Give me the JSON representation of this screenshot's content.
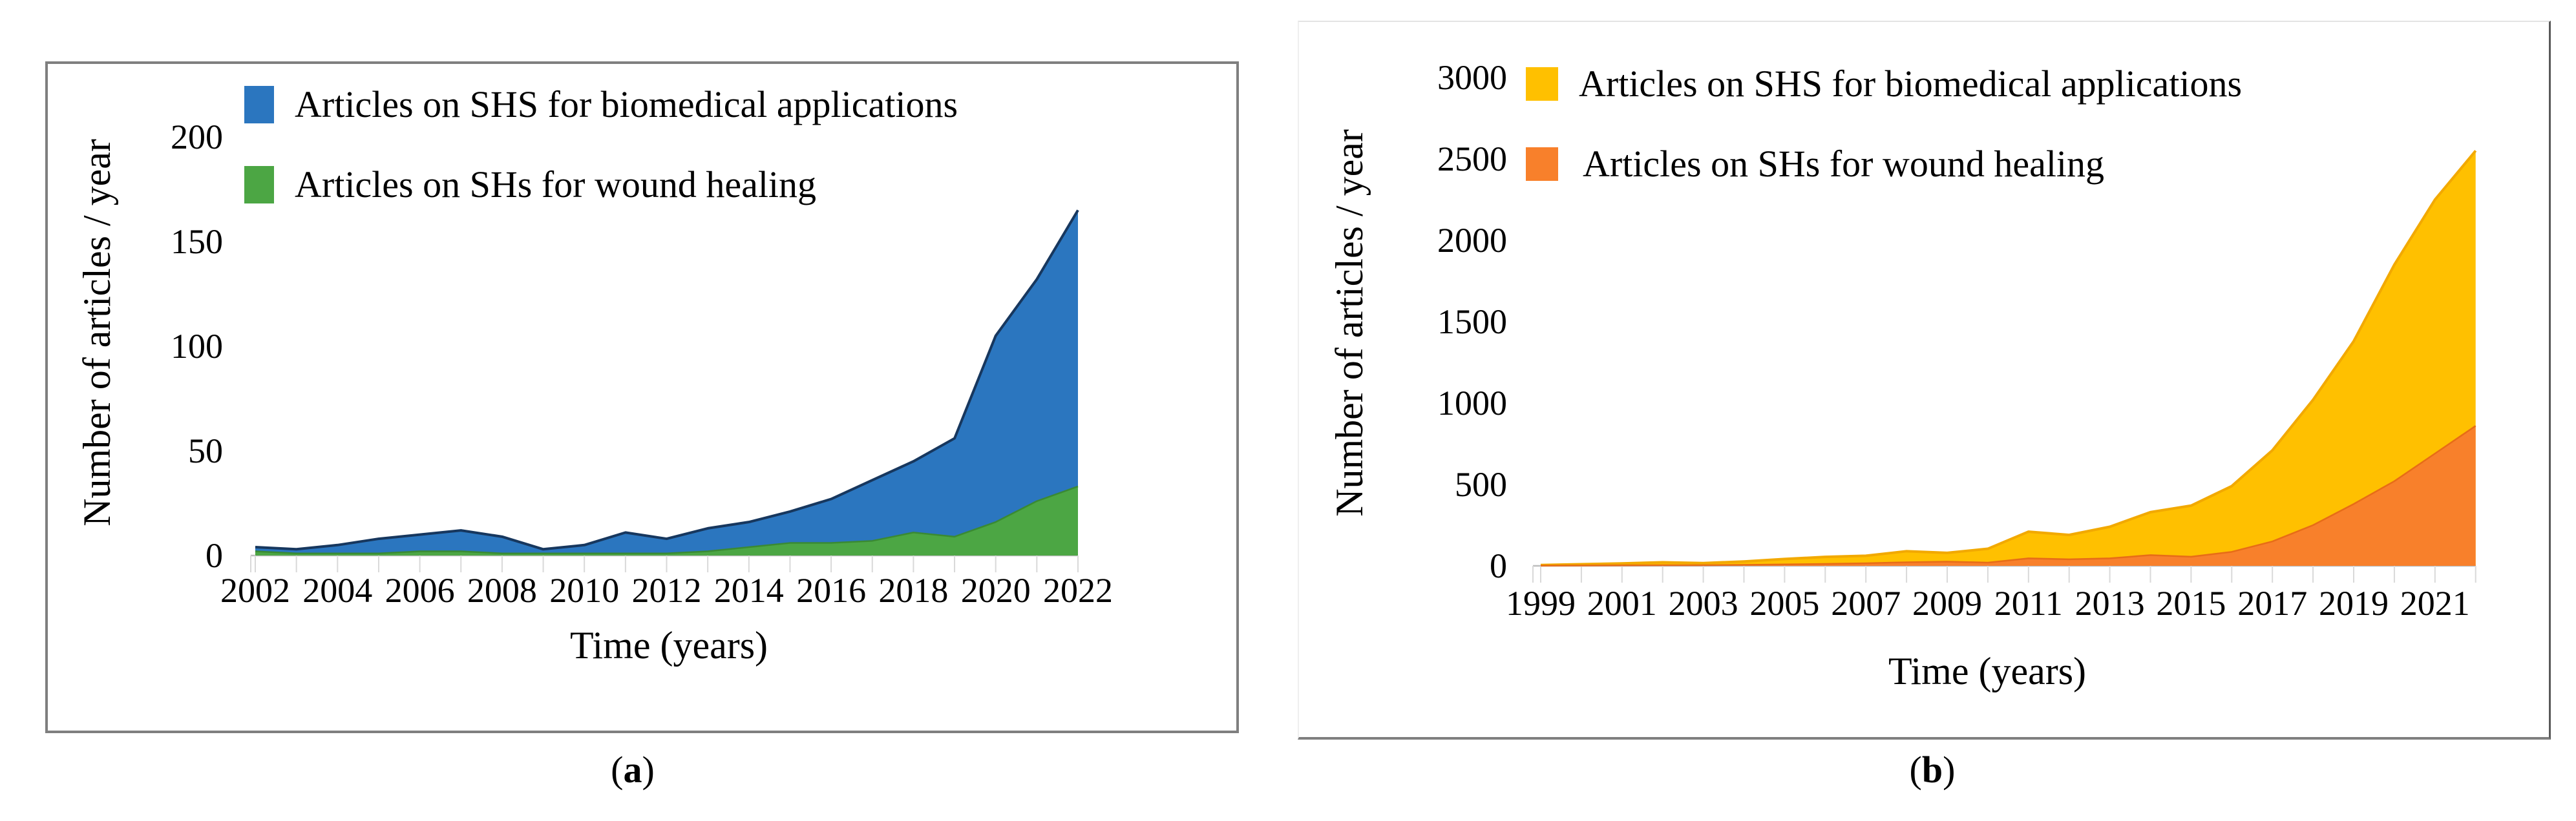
{
  "figure": {
    "panel_a": {
      "caption_open": "(",
      "caption_letter": "a",
      "caption_close": ")",
      "y_axis_title": "Number of articles / year",
      "x_axis_title": "Time (years)",
      "legend": [
        {
          "label": "Articles on SHS for biomedical applications",
          "color": "#2b76bf"
        },
        {
          "label": "Articles on SHs for wound healing",
          "color": "#4ca644"
        }
      ]
    },
    "panel_b": {
      "caption_open": "(",
      "caption_letter": "b",
      "caption_close": ")",
      "y_axis_title": "Number of articles / year",
      "x_axis_title": "Time (years)",
      "legend": [
        {
          "label": "Articles on SHS for biomedical applications",
          "color": "#ffc000"
        },
        {
          "label": "Articles on SHs for wound healing",
          "color": "#f8802b"
        }
      ]
    }
  },
  "chart_data": [
    {
      "panel": "a",
      "type": "area",
      "title": "",
      "xlabel": "Time (years)",
      "ylabel": "Number of articles / year",
      "x": [
        2002,
        2003,
        2004,
        2005,
        2006,
        2007,
        2008,
        2009,
        2010,
        2011,
        2012,
        2013,
        2014,
        2015,
        2016,
        2017,
        2018,
        2019,
        2020,
        2021,
        2022
      ],
      "series": [
        {
          "name": "Articles on SHS for biomedical applications",
          "color": "#2b76bf",
          "edge": "#17375e",
          "values": [
            4,
            3,
            5,
            8,
            10,
            12,
            9,
            3,
            5,
            11,
            8,
            13,
            16,
            21,
            27,
            36,
            45,
            56,
            105,
            132,
            165
          ]
        },
        {
          "name": "Articles on SHs for wound healing",
          "color": "#4ca644",
          "edge": "#3a8a33",
          "values": [
            2,
            1,
            1,
            1,
            2,
            2,
            1,
            1,
            1,
            1,
            1,
            2,
            4,
            6,
            6,
            7,
            11,
            9,
            16,
            26,
            33
          ]
        }
      ],
      "ylim": [
        0,
        200
      ],
      "ytick_labels": [
        "0",
        "50",
        "100",
        "150",
        "200"
      ],
      "xtick_labels": [
        "2002",
        "2004",
        "2006",
        "2008",
        "2010",
        "2012",
        "2014",
        "2016",
        "2018",
        "2020",
        "2022"
      ],
      "grid": false,
      "legend_position": "top-left"
    },
    {
      "panel": "b",
      "type": "area",
      "title": "",
      "xlabel": "Time (years)",
      "ylabel": "Number of articles / year",
      "x": [
        1999,
        2000,
        2001,
        2002,
        2003,
        2004,
        2005,
        2006,
        2007,
        2008,
        2009,
        2010,
        2011,
        2012,
        2013,
        2014,
        2015,
        2016,
        2017,
        2018,
        2019,
        2020,
        2021,
        2022
      ],
      "series": [
        {
          "name": "Articles on SHS for biomedical applications",
          "color": "#ffc000",
          "edge": "#f2a900",
          "values": [
            5,
            10,
            15,
            22,
            17,
            27,
            42,
            55,
            62,
            90,
            80,
            105,
            210,
            190,
            240,
            330,
            370,
            490,
            710,
            1020,
            1380,
            1850,
            2250,
            2550
          ]
        },
        {
          "name": "Articles on SHs for wound healing",
          "color": "#f8802b",
          "edge": "#e76c17",
          "values": [
            1,
            2,
            3,
            4,
            4,
            6,
            9,
            12,
            16,
            22,
            26,
            20,
            46,
            40,
            46,
            66,
            56,
            86,
            150,
            250,
            380,
            520,
            690,
            860
          ]
        }
      ],
      "ylim": [
        0,
        3000
      ],
      "ytick_labels": [
        "0",
        "500",
        "1000",
        "1500",
        "2000",
        "2500",
        "3000"
      ],
      "xtick_labels": [
        "1999",
        "2001",
        "2003",
        "2005",
        "2007",
        "2009",
        "2011",
        "2013",
        "2015",
        "2017",
        "2019",
        "2021"
      ],
      "grid": false,
      "legend_position": "top-left"
    }
  ]
}
